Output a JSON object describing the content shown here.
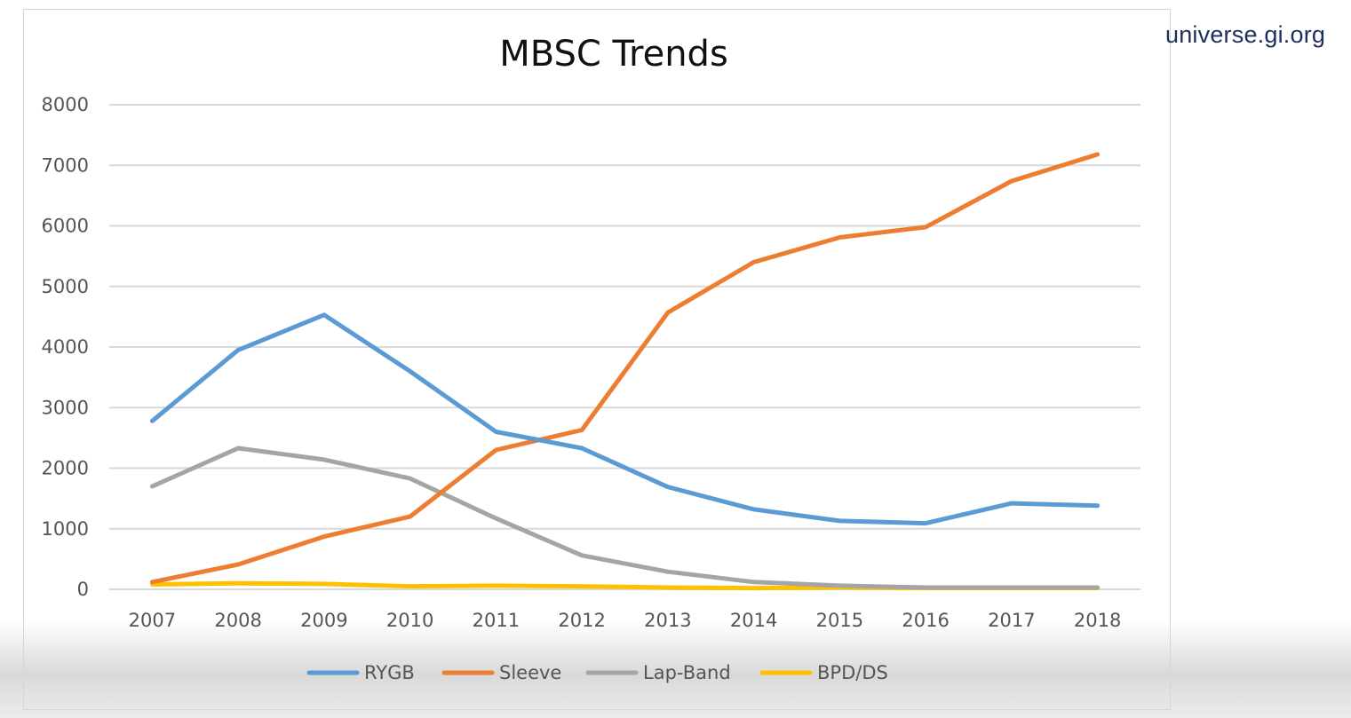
{
  "watermark": "universe.gi.org",
  "colors": {
    "RYGB": "#5b9bd5",
    "Sleeve": "#ed7d31",
    "Lap-Band": "#a5a5a5",
    "BPD/DS": "#ffc000"
  },
  "chart_data": {
    "type": "line",
    "title": "MBSC Trends",
    "xlabel": "",
    "ylabel": "",
    "ylim": [
      0,
      8000
    ],
    "yticks": [
      "0",
      "1000",
      "2000",
      "3000",
      "4000",
      "5000",
      "6000",
      "7000",
      "8000"
    ],
    "categories": [
      "2007",
      "2008",
      "2009",
      "2010",
      "2011",
      "2012",
      "2013",
      "2014",
      "2015",
      "2016",
      "2017",
      "2018"
    ],
    "grid": true,
    "legend": "bottom",
    "series": [
      {
        "name": "RYGB",
        "values": [
          2780,
          3950,
          4530,
          3600,
          2600,
          2330,
          1690,
          1320,
          1130,
          1090,
          1420,
          1380
        ]
      },
      {
        "name": "Sleeve",
        "values": [
          120,
          410,
          870,
          1200,
          2300,
          2630,
          4570,
          5400,
          5810,
          5980,
          6740,
          7180
        ]
      },
      {
        "name": "Lap-Band",
        "values": [
          1700,
          2330,
          2140,
          1830,
          1170,
          560,
          290,
          120,
          60,
          30,
          30,
          30
        ]
      },
      {
        "name": "BPD/DS",
        "values": [
          80,
          100,
          90,
          50,
          60,
          50,
          30,
          20,
          30,
          20,
          20,
          20
        ]
      }
    ]
  }
}
